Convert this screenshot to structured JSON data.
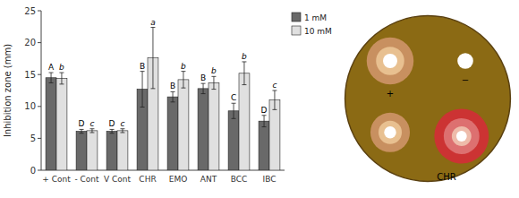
{
  "chart_data": {
    "type": "bar",
    "categories": [
      "+ Cont",
      "- Cont",
      "V Cont",
      "CHR",
      "EMO",
      "ANT",
      "BCC",
      "IBC"
    ],
    "series": [
      {
        "name": "1 mM",
        "color": "#696969",
        "values": [
          14.5,
          6.1,
          6.1,
          12.7,
          11.5,
          12.8,
          9.3,
          7.7
        ],
        "errors": [
          0.8,
          0.3,
          0.3,
          2.8,
          0.8,
          0.8,
          1.2,
          0.9
        ],
        "annotations": [
          "A",
          "D",
          "D",
          "B",
          "B",
          "B",
          "C",
          "D"
        ]
      },
      {
        "name": "10 mM",
        "color": "#e0e0e0",
        "values": [
          14.4,
          6.2,
          6.2,
          17.6,
          14.2,
          13.7,
          15.2,
          11.0
        ],
        "errors": [
          0.9,
          0.3,
          0.3,
          4.8,
          1.3,
          1.0,
          1.8,
          1.5
        ],
        "annotations": [
          "b",
          "c",
          "c",
          "a",
          "b",
          "b",
          "b",
          "c"
        ]
      }
    ],
    "y_label": "Inhibition zone (mm)",
    "ylim": [
      0,
      25
    ],
    "yticks": [
      0,
      5,
      10,
      15,
      20,
      25
    ],
    "grid": false,
    "legend": "right",
    "annotations": [
      "+",
      "−",
      "CHR"
    ]
  }
}
